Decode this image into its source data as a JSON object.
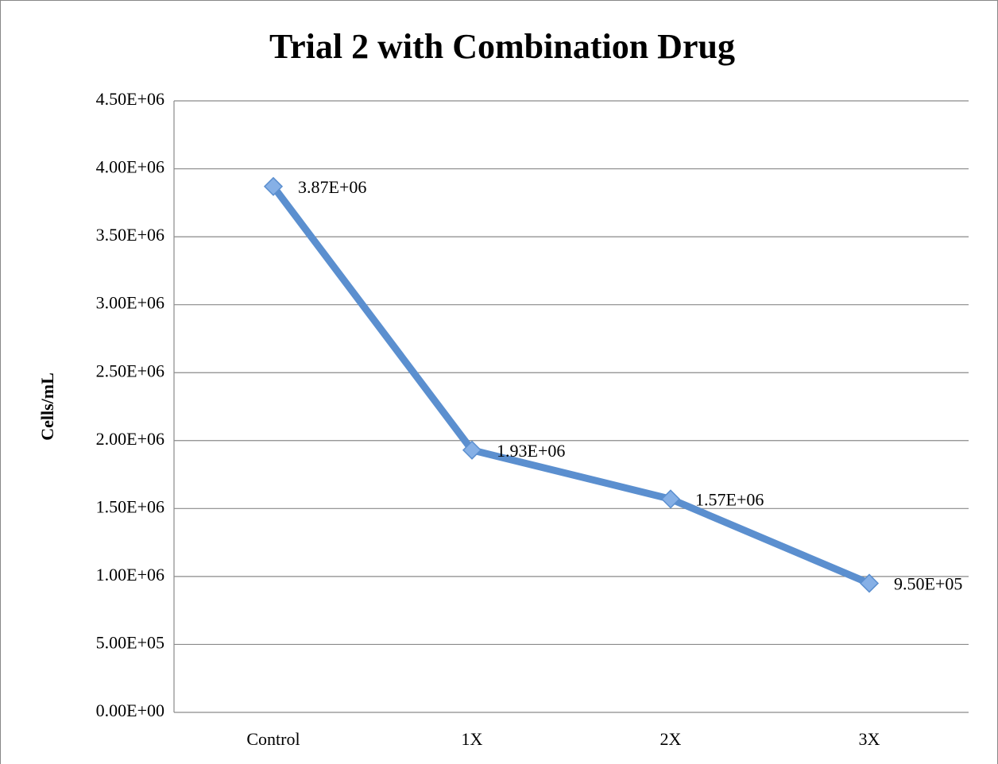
{
  "chart_data": {
    "type": "line",
    "title": "Trial 2 with Combination Drug",
    "y_label": "Cells/mL",
    "categories": [
      "Control",
      "1X",
      "2X",
      "3X"
    ],
    "values": [
      3870000,
      1930000,
      1570000,
      950000
    ],
    "value_labels": [
      "3.87E+06",
      "1.93E+06",
      "1.57E+06",
      "9.50E+05"
    ],
    "color": "#5b8fcf",
    "marker_color": "#86b0e6",
    "ylim": [
      0,
      4500000
    ],
    "yticks": [
      {
        "value": 0,
        "label": "0.00E+00"
      },
      {
        "value": 500000,
        "label": "5.00E+05"
      },
      {
        "value": 1000000,
        "label": "1.00E+06"
      },
      {
        "value": 1500000,
        "label": "1.50E+06"
      },
      {
        "value": 2000000,
        "label": "2.00E+06"
      },
      {
        "value": 2500000,
        "label": "2.50E+06"
      },
      {
        "value": 3000000,
        "label": "3.00E+06"
      },
      {
        "value": 3500000,
        "label": "3.50E+06"
      },
      {
        "value": 4000000,
        "label": "4.00E+06"
      },
      {
        "value": 4500000,
        "label": "4.50E+06"
      }
    ],
    "grid": true
  }
}
